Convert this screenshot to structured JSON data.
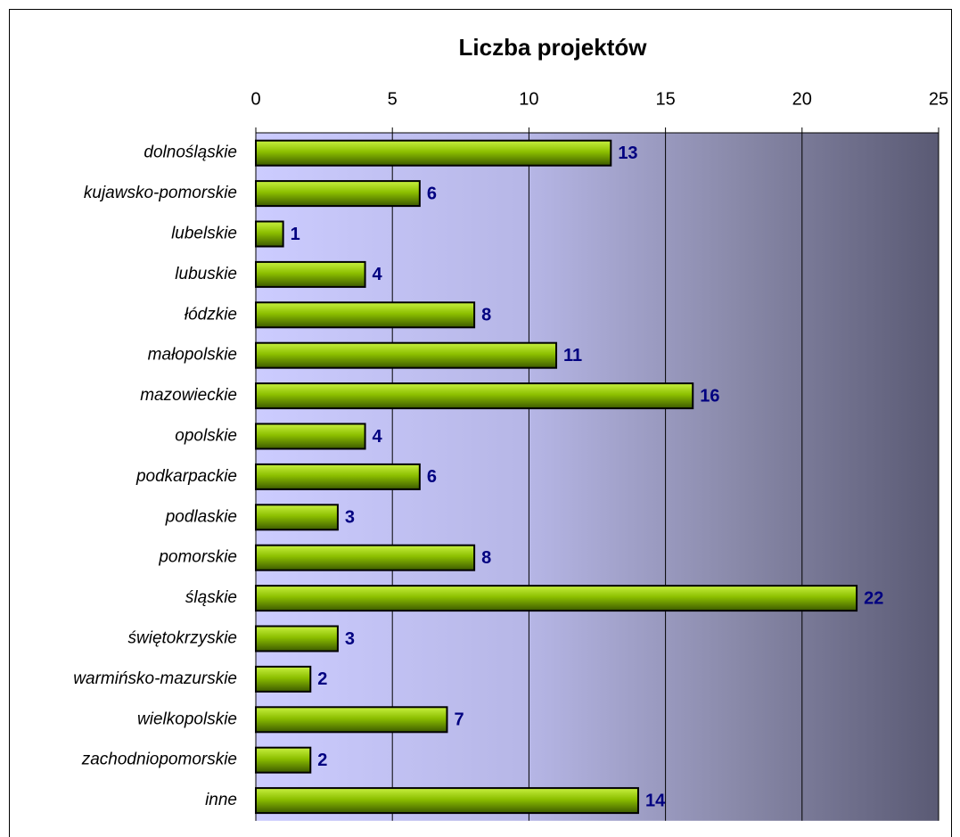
{
  "chart_data": {
    "type": "bar",
    "orientation": "horizontal",
    "title": "Liczba projektów",
    "categories": [
      "dolnośląskie",
      "kujawsko-pomorskie",
      "lubelskie",
      "lubuskie",
      "łódzkie",
      "małopolskie",
      "mazowieckie",
      "opolskie",
      "podkarpackie",
      "podlaskie",
      "pomorskie",
      "śląskie",
      "świętokrzyskie",
      "warmińsko-mazurskie",
      "wielkopolskie",
      "zachodniopomorskie",
      "inne"
    ],
    "values": [
      13,
      6,
      1,
      4,
      8,
      11,
      16,
      4,
      6,
      3,
      8,
      22,
      3,
      2,
      7,
      2,
      14
    ],
    "color": "#8cbf00",
    "xlim": [
      0,
      25
    ],
    "xticks": [
      0,
      5,
      10,
      15,
      20,
      25
    ],
    "grid": true
  }
}
